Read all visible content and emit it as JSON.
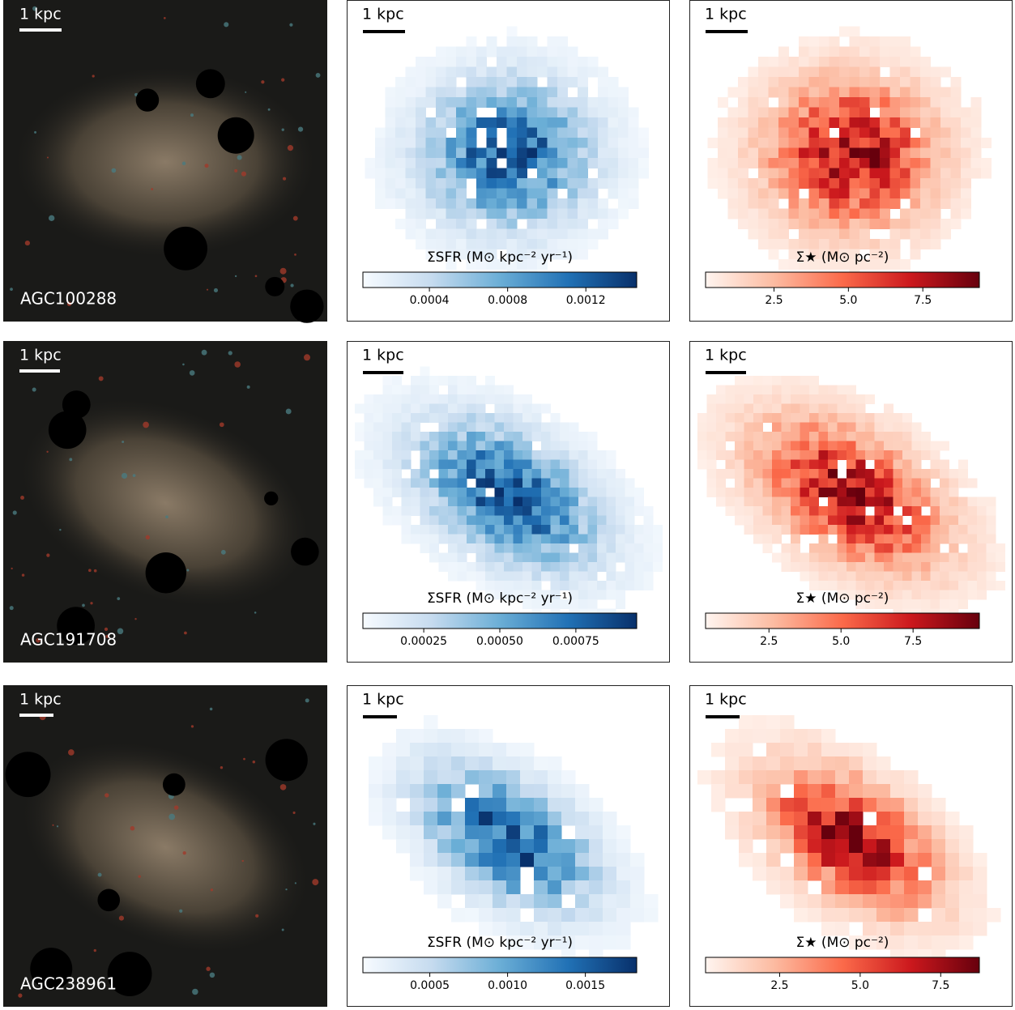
{
  "panels": [
    {
      "name": "AGC100288",
      "scale_labels": [
        "1 kpc",
        "1 kpc",
        "1 kpc"
      ]
    },
    {
      "name": "AGC191708",
      "scale_labels": [
        "1 kpc",
        "1 kpc",
        "1 kpc"
      ]
    },
    {
      "name": "AGC238961",
      "scale_labels": [
        "1 kpc",
        "1 kpc",
        "1 kpc"
      ]
    }
  ],
  "chart_data": [
    {
      "type": "colorbar",
      "title": "ΣSFR (M⊙ kpc⁻² yr⁻¹)",
      "xlim": [
        6e-05,
        0.00146
      ],
      "xticks": [
        0.0004,
        0.0008,
        0.0012
      ],
      "colors": [
        "#f7fbff",
        "#c6dbef",
        "#6baed6",
        "#2171b5",
        "#08306b"
      ]
    },
    {
      "type": "colorbar",
      "title": "Σ★ (M⊙ pc⁻²)",
      "xlim": [
        0.2,
        9.4
      ],
      "xticks": [
        2.5,
        {
          "value": 5,
          "label": "5.0"
        },
        7.5
      ],
      "colors": [
        "#fff5f0",
        "#fcbba1",
        "#fb6a4a",
        "#cb181d",
        "#67000d"
      ]
    },
    {
      "type": "colorbar",
      "title": "ΣSFR (M⊙ kpc⁻² yr⁻¹)",
      "xlim": [
        5e-05,
        0.00095
      ],
      "xticks": [
        0.00025,
        {
          "value": 0.0005,
          "label": "0.00050"
        },
        0.00075
      ],
      "colors": [
        "#f7fbff",
        "#c6dbef",
        "#6baed6",
        "#2171b5",
        "#08306b"
      ]
    },
    {
      "type": "colorbar",
      "title": "Σ★ (M⊙ pc⁻²)",
      "xlim": [
        0.3,
        9.8
      ],
      "xticks": [
        2.5,
        {
          "value": 5,
          "label": "5.0"
        },
        7.5
      ],
      "colors": [
        "#fff5f0",
        "#fcbba1",
        "#fb6a4a",
        "#cb181d",
        "#67000d"
      ]
    },
    {
      "type": "colorbar",
      "title": "ΣSFR (M⊙ kpc⁻² yr⁻¹)",
      "xlim": [
        7e-05,
        0.00183
      ],
      "xticks": [
        0.0005,
        {
          "value": 0.001,
          "label": "0.0010"
        },
        0.0015
      ],
      "colors": [
        "#f7fbff",
        "#c6dbef",
        "#6baed6",
        "#2171b5",
        "#08306b"
      ]
    },
    {
      "type": "colorbar",
      "title": "Σ★ (M⊙ pc⁻²)",
      "xlim": [
        0.2,
        8.7
      ],
      "xticks": [
        2.5,
        {
          "value": 5,
          "label": "5.0"
        },
        7.5
      ],
      "colors": [
        "#fff5f0",
        "#fcbba1",
        "#fb6a4a",
        "#cb181d",
        "#67000d"
      ]
    }
  ]
}
